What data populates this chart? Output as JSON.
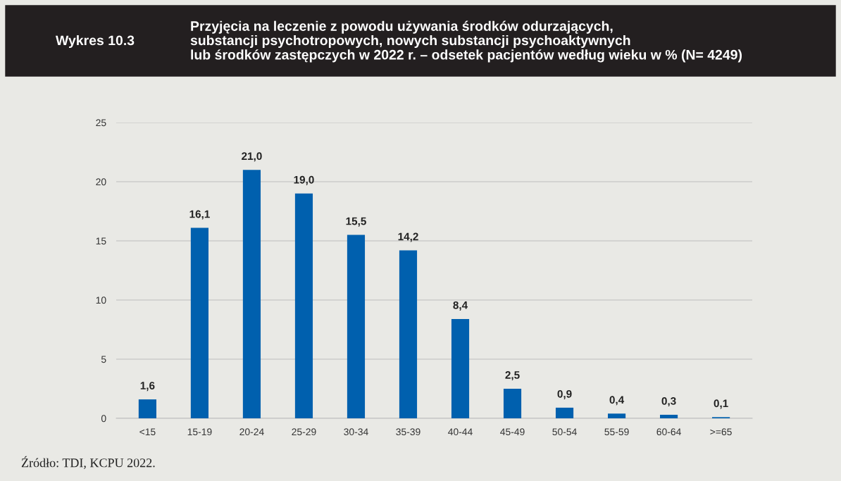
{
  "chart_data": {
    "type": "bar",
    "subtitle": "Wykres 10.3",
    "title": "Przyjęcia na leczenie z powodu używania środków odurzających,\nsubstancji psychotropowych, nowych substancji psychoaktywnych\nlub środków zastępczych w 2022 r. – odsetek pacjentów według wieku w % (N= 4249)",
    "categories": [
      "<15",
      "15-19",
      "20-24",
      "25-29",
      "30-34",
      "35-39",
      "40-44",
      "45-49",
      "50-54",
      "55-59",
      "60-64",
      ">=65"
    ],
    "values": [
      1.6,
      16.1,
      21.0,
      19.0,
      15.5,
      14.2,
      8.4,
      2.5,
      0.9,
      0.4,
      0.3,
      0.1
    ],
    "value_labels": [
      "1,6",
      "16,1",
      "21,0",
      "19,0",
      "15,5",
      "14,2",
      "8,4",
      "2,5",
      "0,9",
      "0,4",
      "0,3",
      "0,1"
    ],
    "color": "#0060ae",
    "ylim": [
      0,
      25
    ],
    "yticks": [
      0,
      5,
      10,
      15,
      20,
      25
    ],
    "grid": "y",
    "annotations": [
      "Źródło: TDI, KCPU 2022."
    ]
  }
}
